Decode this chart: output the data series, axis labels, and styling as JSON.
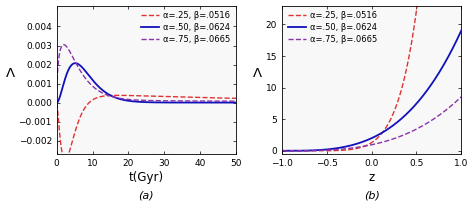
{
  "panel_a": {
    "xlabel": "t(Gyr)",
    "ylabel": "Λ",
    "label": "(a)",
    "xlim": [
      0,
      50
    ],
    "ylim": [
      -0.0027,
      0.0051
    ],
    "yticks": [
      -0.002,
      -0.001,
      0.0,
      0.001,
      0.002,
      0.003,
      0.004
    ],
    "xticks": [
      0,
      10,
      20,
      30,
      40,
      50
    ],
    "lines": [
      {
        "alpha": 0.25,
        "beta": 0.0516,
        "color": "#dd3333",
        "linestyle": "dashed",
        "label": "α=.25, β=.0516"
      },
      {
        "alpha": 0.5,
        "beta": 0.0624,
        "color": "#1111bb",
        "linestyle": "solid",
        "label": "α=.50, β=.0624"
      },
      {
        "alpha": 0.75,
        "beta": 0.0665,
        "color": "#8833aa",
        "linestyle": "dashed",
        "label": "α=.75, β=.0665"
      }
    ]
  },
  "panel_b": {
    "xlabel": "z",
    "ylabel": "Λ",
    "label": "(b)",
    "xlim": [
      -1.0,
      1.0
    ],
    "ylim": [
      -0.5,
      23
    ],
    "yticks": [
      0,
      5,
      10,
      15,
      20
    ],
    "xticks": [
      -1.0,
      -0.5,
      0.0,
      0.5,
      1.0
    ],
    "lines": [
      {
        "alpha": 0.25,
        "beta": 0.0516,
        "color": "#dd3333",
        "linestyle": "dashed",
        "label": "α=.25, β=.0516"
      },
      {
        "alpha": 0.5,
        "beta": 0.0624,
        "color": "#1111bb",
        "linestyle": "solid",
        "label": "α=.50, β=.0624"
      },
      {
        "alpha": 0.75,
        "beta": 0.0665,
        "color": "#8833aa",
        "linestyle": "dashed",
        "label": "α=.75, β=.0665"
      }
    ]
  },
  "bg_color": "#ffffff",
  "plot_bg": "#f8f8f8",
  "legend_fontsize": 6.0,
  "tick_fontsize": 6.5,
  "label_fontsize": 8.5
}
